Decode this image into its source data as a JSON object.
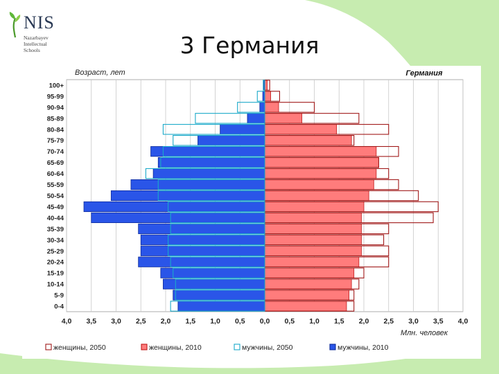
{
  "slide": {
    "title": "3 Германия",
    "logo": {
      "name": "NIS",
      "lines": [
        "Nazarbayev",
        "Intellectual",
        "Schools"
      ]
    }
  },
  "colors": {
    "background_green": "#c7ecb0",
    "women_2010": "#ff7c7c",
    "women_2010_border": "#c01818",
    "women_2050_border": "#a01818",
    "men_2010": "#2a55e8",
    "men_2010_border": "#0d2b9a",
    "men_2050_border": "#1aa9c9",
    "grid": "#c8c8c8"
  },
  "chart_data": {
    "type": "bar",
    "orientation": "horizontal-pyramid",
    "title": "Германия",
    "ylabel": "Возраст, лет",
    "xlabel": "Млн. человек",
    "xlim": [
      -4.0,
      4.0
    ],
    "xticks": [
      "4,0",
      "3,5",
      "3,0",
      "2,5",
      "2,0",
      "1,5",
      "1,0",
      "0,5",
      "0,0",
      "0,5",
      "1,0",
      "1,5",
      "2,0",
      "2,5",
      "3,0",
      "3,5",
      "4,0"
    ],
    "categories": [
      "100+",
      "95-99",
      "90-94",
      "85-89",
      "80-84",
      "75-79",
      "70-74",
      "65-69",
      "60-64",
      "55-59",
      "50-54",
      "45-49",
      "40-44",
      "35-39",
      "30-34",
      "25-29",
      "20-24",
      "15-19",
      "10-14",
      "5-9",
      "0-4"
    ],
    "series": [
      {
        "name": "женщины, 2050",
        "side": "right",
        "style": "outline",
        "values": [
          0.1,
          0.3,
          1.0,
          1.9,
          2.5,
          1.8,
          2.7,
          2.3,
          2.5,
          2.7,
          3.1,
          3.5,
          3.4,
          2.5,
          2.4,
          2.5,
          2.5,
          2.0,
          1.9,
          1.8,
          1.8
        ]
      },
      {
        "name": "женщины, 2010",
        "side": "right",
        "style": "filled",
        "values": [
          0.05,
          0.12,
          0.28,
          0.75,
          1.45,
          1.75,
          2.25,
          2.3,
          2.25,
          2.2,
          2.1,
          2.0,
          1.95,
          1.95,
          1.95,
          1.95,
          1.9,
          1.8,
          1.75,
          1.7,
          1.65
        ]
      },
      {
        "name": "мужчины, 2050",
        "side": "left",
        "style": "outline",
        "values": [
          0.03,
          0.15,
          0.55,
          1.4,
          2.05,
          1.85,
          2.05,
          2.1,
          2.4,
          2.15,
          2.15,
          1.95,
          1.9,
          1.9,
          1.95,
          1.95,
          1.9,
          1.85,
          1.8,
          1.8,
          1.9
        ]
      },
      {
        "name": "мужчины, 2010",
        "side": "left",
        "style": "filled",
        "values": [
          0.02,
          0.04,
          0.1,
          0.35,
          0.9,
          1.35,
          2.3,
          2.15,
          2.25,
          2.7,
          3.1,
          3.65,
          3.5,
          2.55,
          2.5,
          2.5,
          2.55,
          2.1,
          2.05,
          1.85,
          1.75
        ]
      }
    ],
    "legend": [
      {
        "label": "женщины, 2050"
      },
      {
        "label": "женщины, 2010"
      },
      {
        "label": "мужчины, 2050"
      },
      {
        "label": "мужчины, 2010"
      }
    ],
    "legend_position": "bottom",
    "grid": true
  }
}
